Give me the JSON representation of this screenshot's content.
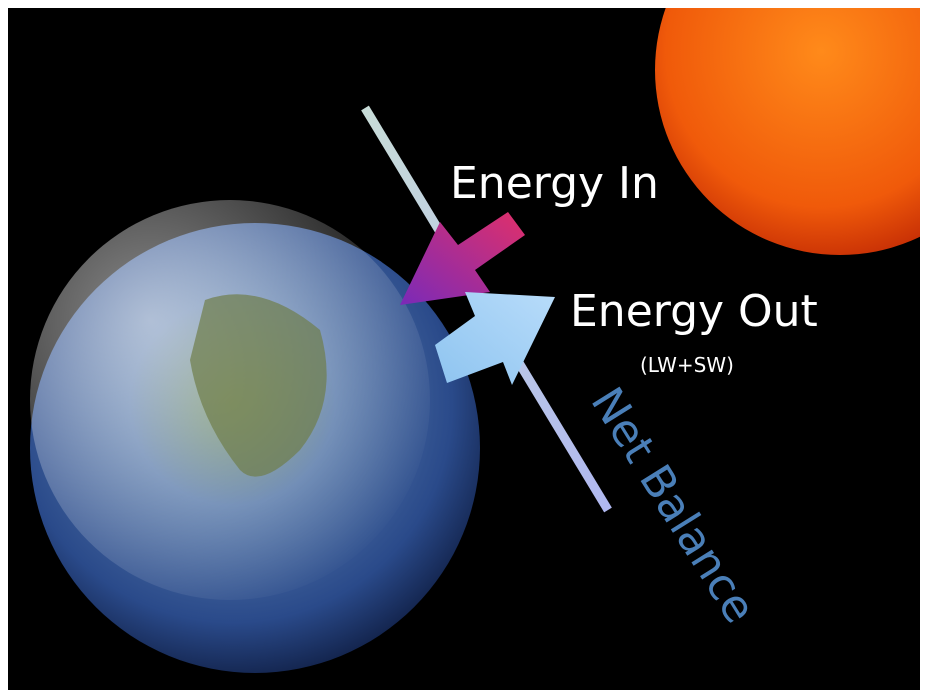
{
  "labels": {
    "energy_in": "Energy In",
    "energy_out": "Energy Out",
    "energy_out_note": "(LW+SW)",
    "net_balance": "Net Balance"
  }
}
